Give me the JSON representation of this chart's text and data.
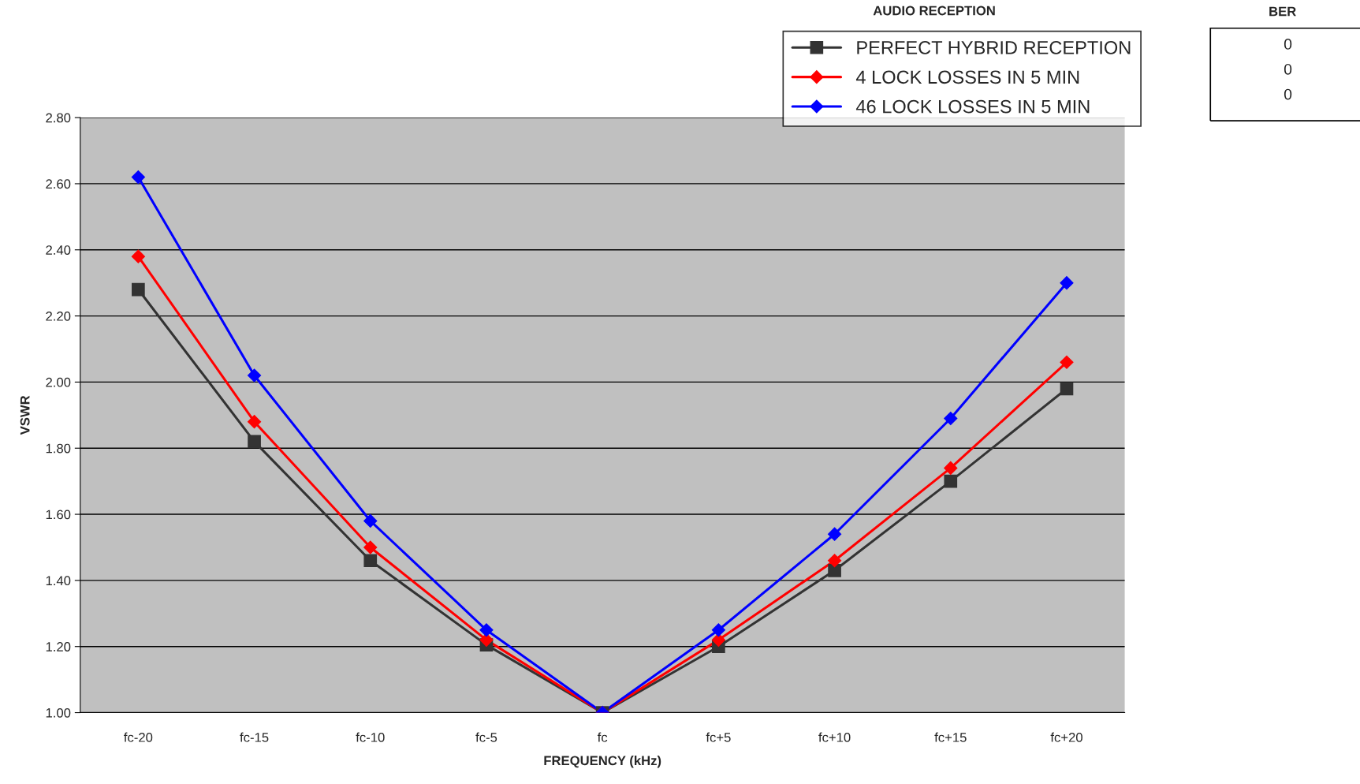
{
  "chart_data": {
    "type": "line",
    "xlabel": "FREQUENCY (kHz)",
    "ylabel": "VSWR",
    "legend_title": "AUDIO RECEPTION",
    "categories": [
      "fc-20",
      "fc-15",
      "fc-10",
      "fc-5",
      "fc",
      "fc+5",
      "fc+10",
      "fc+15",
      "fc+20"
    ],
    "series": [
      {
        "name": "PERFECT HYBRID RECEPTION",
        "color": "#333333",
        "marker": "square",
        "values": [
          2.28,
          1.82,
          1.46,
          1.205,
          1.0,
          1.2,
          1.43,
          1.7,
          1.98
        ]
      },
      {
        "name": "4 LOCK LOSSES IN 5 MIN",
        "color": "#ff0000",
        "marker": "diamond",
        "values": [
          2.38,
          1.88,
          1.5,
          1.22,
          1.0,
          1.22,
          1.46,
          1.74,
          2.06
        ]
      },
      {
        "name": "46 LOCK LOSSES IN 5 MIN",
        "color": "#0000ff",
        "marker": "diamond",
        "values": [
          2.62,
          2.02,
          1.58,
          1.25,
          1.0,
          1.25,
          1.54,
          1.89,
          2.3
        ]
      }
    ],
    "ylim": [
      1.0,
      2.8
    ],
    "yticks": [
      {
        "value": 1.0,
        "label": "1.00"
      },
      {
        "value": 1.2,
        "label": "1.20"
      },
      {
        "value": 1.4,
        "label": "1.40"
      },
      {
        "value": 1.6,
        "label": "1.60"
      },
      {
        "value": 1.8,
        "label": "1.80"
      },
      {
        "value": 2.0,
        "label": "2.00"
      },
      {
        "value": 2.2,
        "label": "2.20"
      },
      {
        "value": 2.4,
        "label": "2.40"
      },
      {
        "value": 2.6,
        "label": "2.60"
      },
      {
        "value": 2.8,
        "label": "2.80"
      }
    ],
    "grid": "y",
    "legend": "top right",
    "line_style": "solid",
    "annotations": [
      "BER",
      "0",
      "0",
      "0"
    ]
  }
}
